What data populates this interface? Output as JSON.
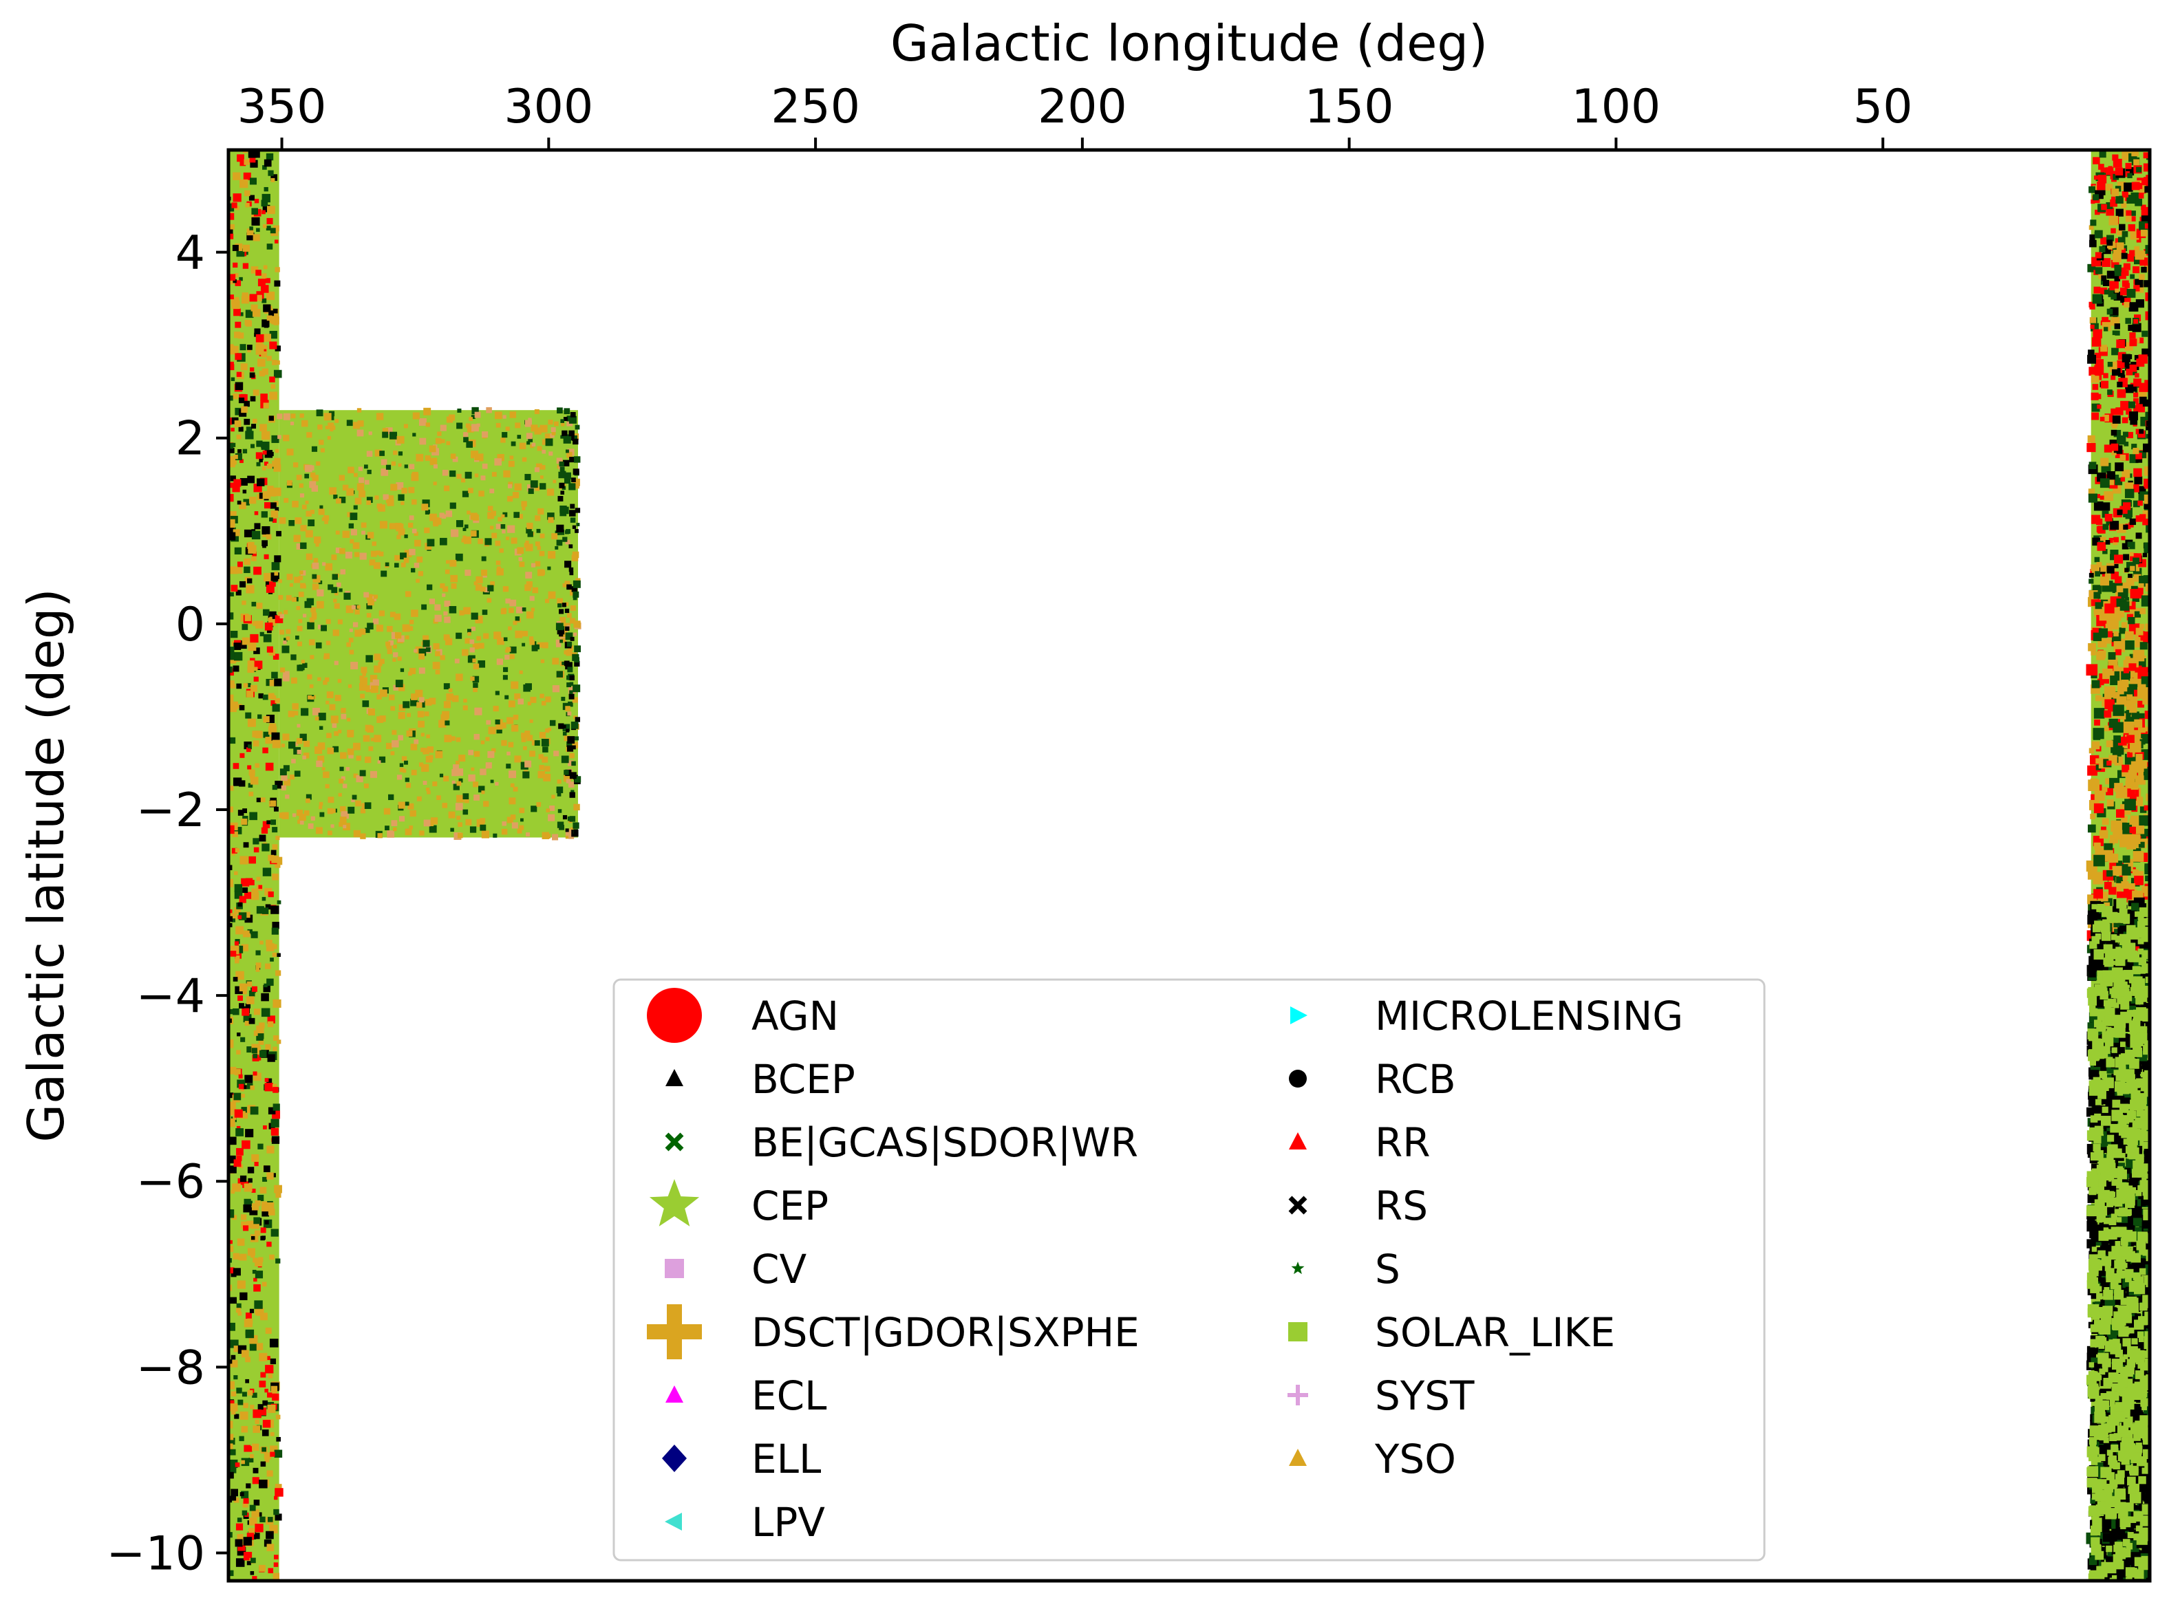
{
  "chart_data": {
    "type": "scatter",
    "xlabel": "Galactic longitude (deg)",
    "ylabel": "Galactic latitude (deg)",
    "x_axis_position": "top",
    "x_inverted": true,
    "xlim": [
      360,
      0
    ],
    "ylim": [
      -10.3,
      5.1
    ],
    "x_ticks": [
      350,
      300,
      250,
      200,
      150,
      100,
      50
    ],
    "x_tick_labels": [
      "350",
      "300",
      "250",
      "200",
      "150",
      "100",
      "50"
    ],
    "y_ticks": [
      4,
      2,
      0,
      -2,
      -4,
      -6,
      -8,
      -10
    ],
    "y_tick_labels": [
      "4",
      "2",
      "0",
      "−2",
      "−4",
      "−6",
      "−8",
      "−10"
    ],
    "grid": false,
    "legend_position": "lower-center",
    "legend_columns": 2,
    "regions": [
      {
        "name": "left-strip",
        "l_range": [
          350.5,
          360
        ],
        "b_range": [
          -10.3,
          5.1
        ],
        "dominant_class": "SOLAR_LIKE"
      },
      {
        "name": "central-block",
        "l_range": [
          294.5,
          350.5
        ],
        "b_range": [
          -2.3,
          2.3
        ],
        "dominant_class": "SOLAR_LIKE"
      },
      {
        "name": "right-strip",
        "l_range": [
          0,
          11
        ],
        "b_range": [
          -10.3,
          5.1
        ],
        "dominant_class": "SOLAR_LIKE"
      }
    ],
    "series": [
      {
        "name": "AGN",
        "color": "#ff0000",
        "marker": "circle-large"
      },
      {
        "name": "BCEP",
        "color": "#000000",
        "marker": "triangle-up"
      },
      {
        "name": "BE|GCAS|SDOR|WR",
        "color": "#006400",
        "marker": "x"
      },
      {
        "name": "CEP",
        "color": "#9acd32",
        "marker": "star-large"
      },
      {
        "name": "CV",
        "color": "#dda0dd",
        "marker": "square"
      },
      {
        "name": "DSCT|GDOR|SXPHE",
        "color": "#daa520",
        "marker": "plus-large"
      },
      {
        "name": "ECL",
        "color": "#ff00ff",
        "marker": "triangle-up"
      },
      {
        "name": "ELL",
        "color": "#000080",
        "marker": "diamond"
      },
      {
        "name": "LPV",
        "color": "#40e0d0",
        "marker": "triangle-left"
      },
      {
        "name": "MICROLENSING",
        "color": "#00ffff",
        "marker": "triangle-right"
      },
      {
        "name": "RCB",
        "color": "#000000",
        "marker": "circle"
      },
      {
        "name": "RR",
        "color": "#ff0000",
        "marker": "triangle-up"
      },
      {
        "name": "RS",
        "color": "#000000",
        "marker": "x"
      },
      {
        "name": "S",
        "color": "#006400",
        "marker": "star"
      },
      {
        "name": "SOLAR_LIKE",
        "color": "#9acd32",
        "marker": "square"
      },
      {
        "name": "SYST",
        "color": "#dda0dd",
        "marker": "plus"
      },
      {
        "name": "YSO",
        "color": "#daa520",
        "marker": "triangle-up"
      }
    ]
  }
}
